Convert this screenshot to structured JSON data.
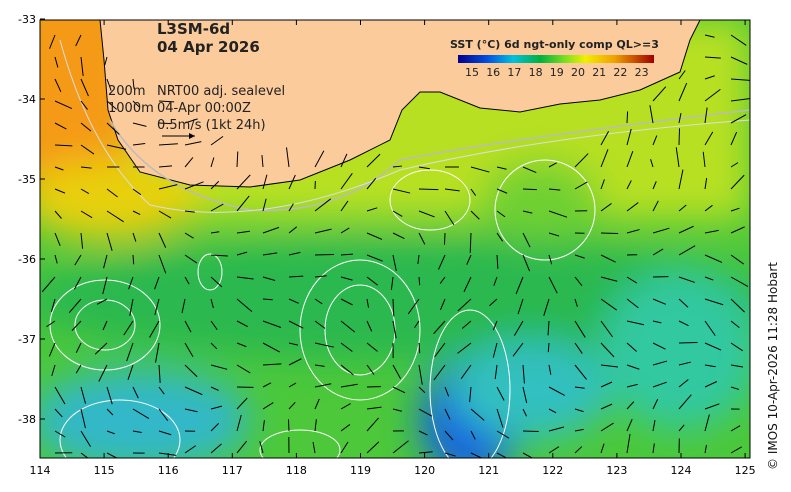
{
  "title": {
    "product": "L3SM-6d",
    "date": "04 Apr 2026"
  },
  "annotations": {
    "contour_200": "200m",
    "contour_1000": "1000m",
    "sealevel": "NRT00 adj. sealevel",
    "time": "04-Apr 00:00Z",
    "vector_scale": "0.5m/s (1kt 24h)"
  },
  "legend": {
    "title": "SST (°C) 6d ngt-only comp QL>=3",
    "ticks": [
      "15",
      "16",
      "17",
      "18",
      "19",
      "20",
      "21",
      "22",
      "23"
    ],
    "range": [
      14.5,
      23.8
    ]
  },
  "axes": {
    "lon_ticks": [
      "114",
      "115",
      "116",
      "117",
      "118",
      "119",
      "120",
      "121",
      "122",
      "123",
      "124",
      "125"
    ],
    "lat_ticks": [
      "-33",
      "-34",
      "-35",
      "-36",
      "-37",
      "-38"
    ]
  },
  "credit": "© IMOS 10-Apr-2026 11:28 Hobart",
  "colors": {
    "land": "#fccb9c",
    "warm": "#f08a1a",
    "mid": "#7ed321",
    "cool": "#1ec0b0",
    "cold": "#0a3cd0"
  }
}
